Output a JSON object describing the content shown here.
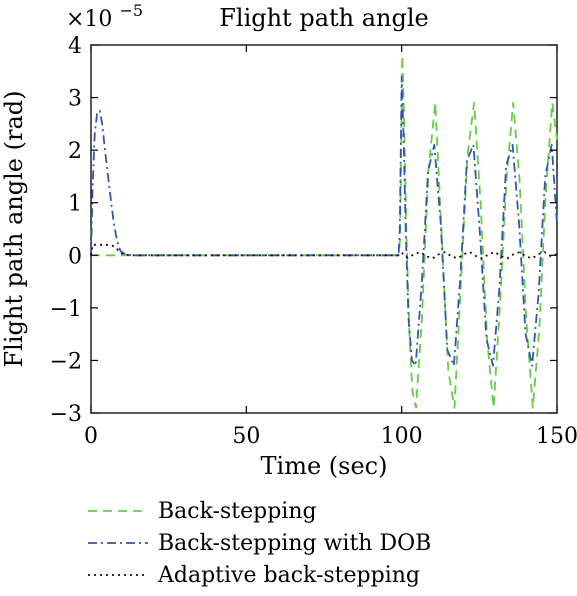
{
  "chart_data": {
    "type": "line",
    "title": "Flight path angle",
    "xlabel": "Time (sec)",
    "ylabel": "Flight path angle (rad)",
    "y_multiplier": {
      "base": "×10",
      "exponent": "−5"
    },
    "xlim": [
      0,
      150
    ],
    "ylim": [
      -3,
      4
    ],
    "xticks": [
      0,
      50,
      100,
      150
    ],
    "yticks": [
      -3,
      -2,
      -1,
      0,
      1,
      2,
      3,
      4
    ],
    "xtick_labels": [
      "0",
      "50",
      "100",
      "150"
    ],
    "ytick_labels": [
      "−3",
      "−2",
      "−1",
      "0",
      "1",
      "2",
      "3",
      "4"
    ],
    "grid": false,
    "legend_position": "below",
    "series": [
      {
        "name": "Back-stepping",
        "color": "#66cc44",
        "style": "dashed",
        "x": [
          0,
          99,
          99.5,
          100.2,
          100.8,
          101.5,
          102.5,
          103.5,
          104.6,
          106.5,
          108.6,
          110.8,
          112.8,
          115.0,
          117.0,
          119.1,
          121.2,
          123.3,
          125.4,
          127.5,
          129.6,
          131.6,
          133.8,
          135.9,
          138.0,
          140.1,
          142.2,
          144.3,
          146.4,
          148.5,
          150
        ],
        "y": [
          0,
          0,
          0.3,
          3.8,
          2.5,
          0.5,
          -1.5,
          -2.6,
          -2.9,
          -1.2,
          1.6,
          2.9,
          0.5,
          -2.2,
          -2.9,
          -0.5,
          1.9,
          2.9,
          1.0,
          -1.6,
          -2.9,
          -1.0,
          1.5,
          2.9,
          1.4,
          -1.2,
          -2.9,
          -1.4,
          1.2,
          2.9,
          2.2
        ]
      },
      {
        "name": "Back-stepping with DOB",
        "color": "#3355aa",
        "style": "dashdot",
        "x": [
          0,
          0.5,
          1.2,
          2.0,
          2.8,
          3.6,
          4.5,
          5.5,
          6.5,
          7.5,
          8.5,
          9.5,
          11,
          13,
          15,
          99,
          99.4,
          100.0,
          100.6,
          101.3,
          102.2,
          103.3,
          104.5,
          106.5,
          108.5,
          110.5,
          112.6,
          114.7,
          116.8,
          118.9,
          121.0,
          123.1,
          125.2,
          127.3,
          129.4,
          131.5,
          133.6,
          135.7,
          137.8,
          139.9,
          142.0,
          144.1,
          146.2,
          148.3,
          150
        ],
        "y": [
          0,
          1.3,
          2.3,
          2.72,
          2.75,
          2.5,
          2.0,
          1.5,
          1.0,
          0.55,
          0.25,
          0.08,
          0.02,
          0,
          0,
          0,
          0.5,
          3.4,
          2.3,
          0.5,
          -1.2,
          -2.0,
          -2.1,
          -0.5,
          1.6,
          2.1,
          0.6,
          -1.8,
          -2.1,
          -0.4,
          1.8,
          2.1,
          0.4,
          -1.6,
          -2.1,
          -0.6,
          1.7,
          2.1,
          0.6,
          -1.5,
          -2.1,
          -0.7,
          1.5,
          2.1,
          0.6
        ]
      },
      {
        "name": "Adaptive back-stepping",
        "color": "#111111",
        "style": "dotted",
        "x": [
          0,
          0.5,
          1.5,
          3,
          5,
          7,
          8,
          9,
          10,
          11,
          13,
          15,
          99,
          100,
          102,
          104,
          106,
          108,
          110,
          112,
          114,
          116,
          118,
          120,
          122,
          124,
          126,
          128,
          130,
          132,
          134,
          136,
          138,
          140,
          142,
          144,
          146,
          148,
          150
        ],
        "y": [
          0,
          0.2,
          0.2,
          0.2,
          0.2,
          0.18,
          0.14,
          0.08,
          0.03,
          0.01,
          0,
          0,
          0,
          0.05,
          -0.05,
          0.02,
          0.06,
          -0.02,
          -0.06,
          0.02,
          0.06,
          -0.02,
          -0.06,
          0.02,
          0.06,
          -0.02,
          -0.06,
          0.02,
          0.06,
          -0.02,
          -0.06,
          0.02,
          0.06,
          -0.02,
          -0.06,
          0.02,
          0.06,
          -0.02,
          0.02
        ]
      }
    ]
  }
}
